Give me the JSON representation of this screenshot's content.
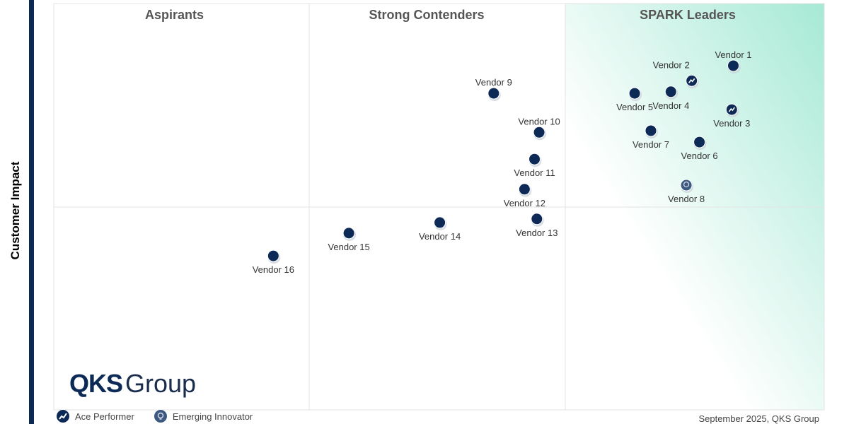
{
  "chart_data": {
    "type": "scatter",
    "title": "",
    "ylabel": "Customer Impact",
    "xlabel": "",
    "xlim": [
      0,
      100
    ],
    "ylim": [
      0,
      100
    ],
    "grid": false,
    "quadrants": [
      "Aspirants",
      "Strong Contenders",
      "SPARK Leaders"
    ],
    "points": [
      {
        "name": "Vendor 1",
        "x": 88.2,
        "y": 84.7,
        "type": "standard",
        "label": "above"
      },
      {
        "name": "Vendor 2",
        "x": 82.8,
        "y": 81.0,
        "type": "ace",
        "label": "above-left"
      },
      {
        "name": "Vendor 3",
        "x": 88.0,
        "y": 73.9,
        "type": "ace",
        "label": "below"
      },
      {
        "name": "Vendor 4",
        "x": 80.1,
        "y": 78.3,
        "type": "standard",
        "label": "below"
      },
      {
        "name": "Vendor 5",
        "x": 75.4,
        "y": 77.9,
        "type": "standard",
        "label": "below"
      },
      {
        "name": "Vendor 6",
        "x": 83.8,
        "y": 65.9,
        "type": "standard",
        "label": "below"
      },
      {
        "name": "Vendor 7",
        "x": 77.5,
        "y": 68.7,
        "type": "standard",
        "label": "below"
      },
      {
        "name": "Vendor 8",
        "x": 82.1,
        "y": 55.3,
        "type": "emerging",
        "label": "below"
      },
      {
        "name": "Vendor 9",
        "x": 57.1,
        "y": 77.9,
        "type": "standard",
        "label": "above"
      },
      {
        "name": "Vendor 10",
        "x": 63.0,
        "y": 68.3,
        "type": "standard",
        "label": "above"
      },
      {
        "name": "Vendor 11",
        "x": 62.4,
        "y": 61.7,
        "type": "standard",
        "label": "below"
      },
      {
        "name": "Vendor 12",
        "x": 61.1,
        "y": 54.3,
        "type": "standard",
        "label": "below"
      },
      {
        "name": "Vendor 13",
        "x": 62.7,
        "y": 47.0,
        "type": "standard",
        "label": "below"
      },
      {
        "name": "Vendor 14",
        "x": 50.1,
        "y": 46.1,
        "type": "standard",
        "label": "below"
      },
      {
        "name": "Vendor 15",
        "x": 38.3,
        "y": 43.5,
        "type": "standard",
        "label": "below"
      },
      {
        "name": "Vendor 16",
        "x": 28.5,
        "y": 37.9,
        "type": "standard",
        "label": "below"
      }
    ],
    "legend": [
      {
        "name": "Ace Performer",
        "icon": "trend-line-icon"
      },
      {
        "name": "Emerging Innovator",
        "icon": "lightbulb-icon"
      }
    ],
    "colors": {
      "marker": "#0d2a57",
      "leader_gradient": "#a6e9d5"
    }
  },
  "logo": {
    "bold": "QKS",
    "regular": "Group"
  },
  "source": "September 2025, QKS Group"
}
